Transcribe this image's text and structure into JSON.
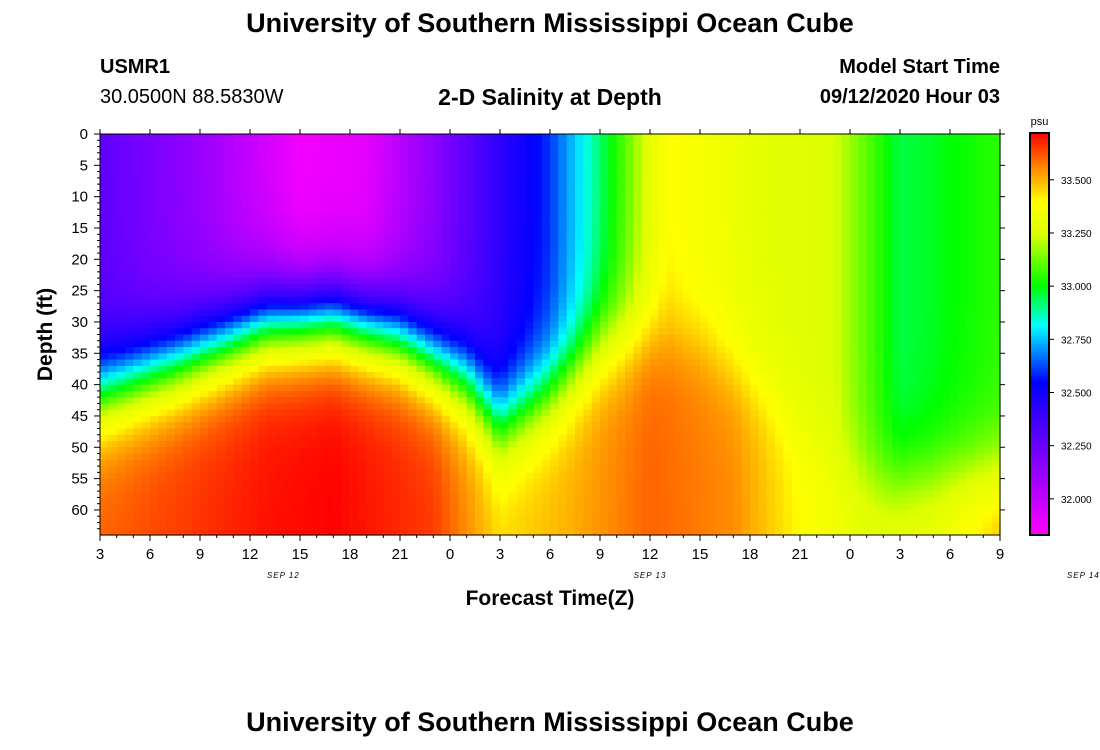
{
  "header": {
    "title": "University of Southern Mississippi Ocean Cube",
    "station_id": "USMR1",
    "station_coords": "30.0500N 88.5830W",
    "plot_title": "2-D Salinity at Depth",
    "model_start_label": "Model Start Time",
    "model_start_value": "09/12/2020 Hour 03"
  },
  "footer": {
    "title": "University of Southern Mississippi Ocean Cube"
  },
  "chart_data": {
    "type": "heatmap",
    "title": "2-D Salinity at Depth",
    "xlabel": "Forecast Time(Z)",
    "ylabel": "Depth (ft)",
    "x_ticks": [
      "3",
      "6",
      "9",
      "12",
      "15",
      "18",
      "21",
      "0",
      "3",
      "6",
      "9",
      "12",
      "15",
      "18",
      "21",
      "0",
      "3",
      "6",
      "9"
    ],
    "x_range_hours": [
      0,
      54
    ],
    "day_labels": [
      {
        "label": "SEP 12",
        "hour": 11
      },
      {
        "label": "SEP 13",
        "hour": 33
      },
      {
        "label": "SEP 14",
        "hour": 59
      }
    ],
    "y_ticks": [
      0,
      5,
      10,
      15,
      20,
      25,
      30,
      35,
      40,
      45,
      50,
      55,
      60
    ],
    "y_range": [
      0,
      64
    ],
    "colorbar": {
      "unit": "psu",
      "range": [
        31.83,
        33.72
      ],
      "ticks": [
        "33.500",
        "33.250",
        "33.000",
        "32.750",
        "32.500",
        "32.250",
        "32.000"
      ]
    },
    "surface_profile": {
      "hours": [
        0,
        6,
        12,
        16,
        20,
        24,
        27,
        30,
        34,
        40,
        44,
        48,
        50,
        54
      ],
      "psu": [
        32.28,
        32.12,
        31.86,
        31.9,
        32.15,
        32.42,
        32.6,
        32.92,
        33.4,
        33.28,
        33.25,
        32.95,
        32.98,
        33.05
      ]
    },
    "halocline_depth_ft": {
      "hours": [
        0,
        5,
        10,
        14,
        18,
        22,
        24,
        27,
        30,
        33,
        36,
        40,
        44,
        47,
        50,
        54
      ],
      "depth": [
        41,
        36,
        30,
        29,
        32,
        39,
        46,
        41,
        34,
        31,
        33,
        41,
        52,
        56,
        55,
        54
      ]
    },
    "bottom_psu": {
      "hours": [
        0,
        10,
        14,
        20,
        24,
        28,
        33,
        38,
        42,
        46,
        50,
        54
      ],
      "psu": [
        33.6,
        33.7,
        33.72,
        33.65,
        33.45,
        33.5,
        33.6,
        33.55,
        33.4,
        33.3,
        33.35,
        33.5
      ]
    },
    "colors": {
      "low": "#ff00ff",
      "mid_low": "#0000ff",
      "mid": "#00ffff",
      "mid_high": "#00ff00",
      "high_mid": "#ffff00",
      "high": "#ff0000"
    }
  }
}
